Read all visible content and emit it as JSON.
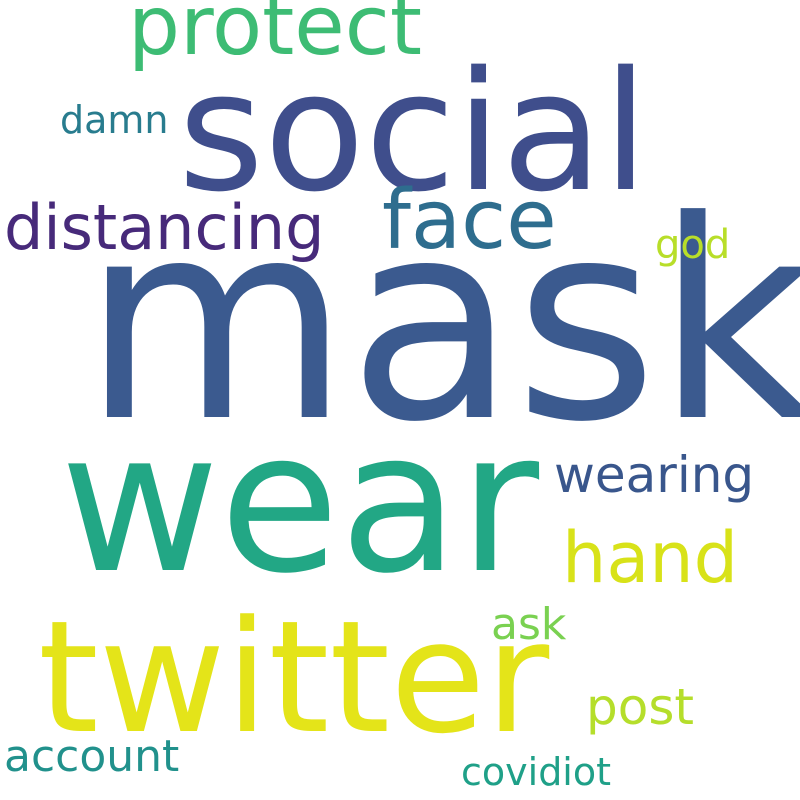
{
  "words": [
    {
      "text": "mask",
      "color": "#3b5a8f"
    },
    {
      "text": "social",
      "color": "#3f4e8c"
    },
    {
      "text": "wear",
      "color": "#22a785"
    },
    {
      "text": "twitter",
      "color": "#e4e419"
    },
    {
      "text": "protect",
      "color": "#3dbc74"
    },
    {
      "text": "face",
      "color": "#2e6d8e"
    },
    {
      "text": "distancing",
      "color": "#472a7a"
    },
    {
      "text": "hand",
      "color": "#d8e219"
    },
    {
      "text": "wearing",
      "color": "#39568c"
    },
    {
      "text": "post",
      "color": "#b5de2b"
    },
    {
      "text": "account",
      "color": "#21918c"
    },
    {
      "text": "covidiot",
      "color": "#1fa088"
    },
    {
      "text": "ask",
      "color": "#7ad151"
    },
    {
      "text": "damn",
      "color": "#287c8e"
    },
    {
      "text": "god",
      "color": "#b8de29"
    }
  ]
}
